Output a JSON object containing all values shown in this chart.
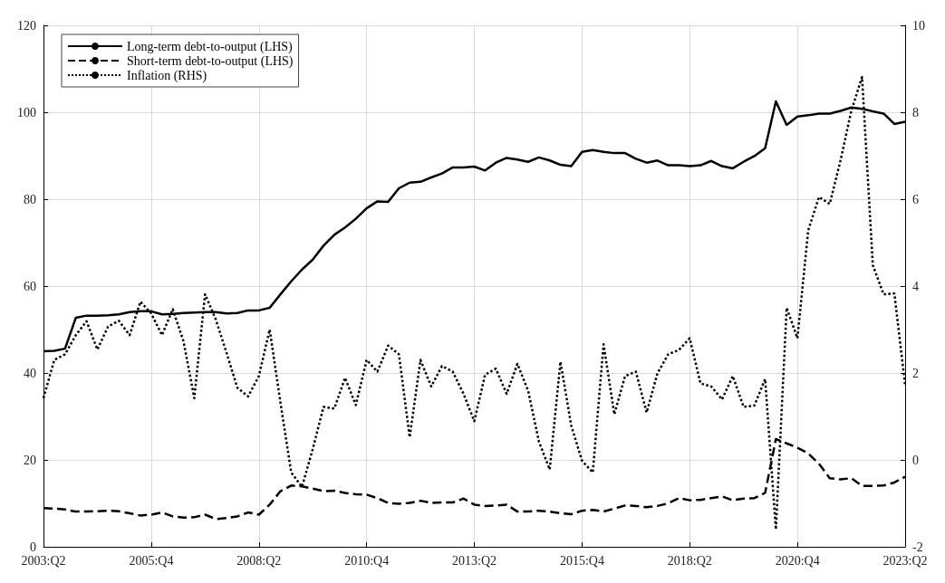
{
  "chart_data": {
    "type": "line",
    "categories": [
      "2003:Q2",
      null,
      null,
      null,
      null,
      null,
      null,
      null,
      null,
      null,
      "2005:Q4",
      null,
      null,
      null,
      null,
      null,
      null,
      null,
      null,
      null,
      "2008:Q2",
      null,
      null,
      null,
      null,
      null,
      null,
      null,
      null,
      null,
      "2010:Q4",
      null,
      null,
      null,
      null,
      null,
      null,
      null,
      null,
      null,
      "2013:Q2",
      null,
      null,
      null,
      null,
      null,
      null,
      null,
      null,
      null,
      "2015:Q4",
      null,
      null,
      null,
      null,
      null,
      null,
      null,
      null,
      null,
      "2018:Q2",
      null,
      null,
      null,
      null,
      null,
      null,
      null,
      null,
      null,
      "2020:Q4",
      null,
      null,
      null,
      null,
      null,
      null,
      null,
      null,
      null,
      "2023:Q2"
    ],
    "series": [
      {
        "name": "Long-term debt-to-output (LHS)",
        "color": "#000000",
        "line_style": "solid",
        "values": [
          45.0,
          45.1,
          45.6,
          52.7,
          53.2,
          53.2,
          53.3,
          53.5,
          54.0,
          54.2,
          54.2,
          53.5,
          53.6,
          53.8,
          53.9,
          54.0,
          54.0,
          53.7,
          53.8,
          54.4,
          54.4,
          55.0,
          58.1,
          61.1,
          63.8,
          66.1,
          69.3,
          71.8,
          73.5,
          75.5,
          77.9,
          79.5,
          79.4,
          82.5,
          83.8,
          84.0,
          85.0,
          85.9,
          87.3,
          87.3,
          87.5,
          86.6,
          88.4,
          89.5,
          89.1,
          88.6,
          89.6,
          88.9,
          87.9,
          87.6,
          90.9,
          91.3,
          90.9,
          90.6,
          90.6,
          89.3,
          88.4,
          88.9,
          87.8,
          87.8,
          87.6,
          87.8,
          88.8,
          87.6,
          87.1,
          88.6,
          89.9,
          91.7,
          102.5,
          97.1,
          99.0,
          99.3,
          99.7,
          99.7,
          100.3,
          101.1,
          100.8,
          100.2,
          99.7,
          97.3,
          97.8
        ]
      },
      {
        "name": "Short-term debt-to-output (LHS)",
        "color": "#000000",
        "line_style": "dashed",
        "values": [
          8.9,
          8.8,
          8.6,
          8.1,
          8.1,
          8.2,
          8.3,
          8.2,
          7.7,
          7.2,
          7.4,
          7.9,
          7.0,
          6.7,
          6.8,
          7.4,
          6.4,
          6.6,
          7.0,
          7.9,
          7.4,
          9.7,
          12.8,
          14.1,
          13.9,
          13.4,
          12.8,
          12.9,
          12.4,
          12.1,
          12.0,
          11.2,
          10.1,
          9.9,
          10.1,
          10.6,
          10.1,
          10.2,
          10.2,
          11.1,
          9.7,
          9.4,
          9.5,
          9.7,
          8.1,
          8.1,
          8.3,
          8.1,
          7.7,
          7.5,
          8.3,
          8.5,
          8.1,
          8.8,
          9.5,
          9.4,
          9.1,
          9.4,
          10.0,
          11.2,
          10.7,
          10.8,
          11.2,
          11.6,
          10.7,
          11.1,
          11.2,
          12.4,
          24.8,
          23.8,
          22.8,
          21.5,
          19.1,
          15.8,
          15.5,
          15.8,
          14.0,
          14.0,
          14.1,
          14.8,
          16.1
        ]
      },
      {
        "name": "Inflation (RHS)",
        "color": "#000000",
        "line_style": "dotted",
        "axis": "y2",
        "values": [
          1.42,
          2.3,
          2.43,
          2.87,
          3.19,
          2.54,
          3.07,
          3.2,
          2.87,
          3.64,
          3.37,
          2.87,
          3.47,
          2.73,
          1.42,
          3.81,
          3.23,
          2.46,
          1.66,
          1.46,
          1.93,
          3.0,
          1.32,
          -0.29,
          -0.62,
          0.25,
          1.22,
          1.18,
          1.89,
          1.26,
          2.3,
          2.03,
          2.63,
          2.43,
          0.52,
          2.3,
          1.69,
          2.16,
          2.03,
          1.52,
          0.89,
          1.96,
          2.1,
          1.52,
          2.21,
          1.59,
          0.42,
          -0.22,
          2.26,
          0.79,
          -0.02,
          -0.29,
          2.66,
          1.05,
          1.93,
          2.03,
          1.09,
          1.99,
          2.43,
          2.53,
          2.8,
          1.76,
          1.69,
          1.39,
          1.93,
          1.22,
          1.25,
          1.86,
          -1.6,
          3.5,
          2.8,
          5.28,
          6.05,
          5.89,
          6.89,
          8.03,
          8.81,
          4.48,
          3.81,
          3.83,
          1.72
        ]
      }
    ],
    "ylim": [
      0,
      120
    ],
    "yticks": [
      0,
      20,
      40,
      60,
      80,
      100,
      120
    ],
    "y2lim": [
      -2,
      10
    ],
    "y2ticks": [
      -2,
      0,
      2,
      4,
      6,
      8,
      10
    ],
    "grid": true,
    "legend": "top left",
    "marker": "none"
  }
}
